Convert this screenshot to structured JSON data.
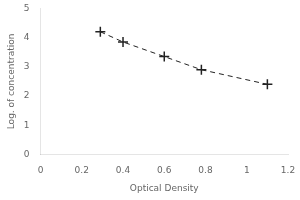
{
  "chart_data": {
    "type": "line",
    "x": [
      0.29,
      0.4,
      0.6,
      0.78,
      1.1
    ],
    "values": [
      4.2,
      3.85,
      3.35,
      2.9,
      2.4
    ],
    "xlabel": "Optical Density",
    "ylabel": "Log. of concentration",
    "xlim": [
      0,
      1.2
    ],
    "ylim": [
      0,
      5
    ],
    "xticks": [
      0,
      0.2,
      0.4,
      0.6,
      0.8,
      1,
      1.2
    ],
    "yticks": [
      0,
      1,
      2,
      3,
      4,
      5
    ],
    "color": "#222222",
    "marker": "plus",
    "line_style": "dashed",
    "grid": false
  }
}
